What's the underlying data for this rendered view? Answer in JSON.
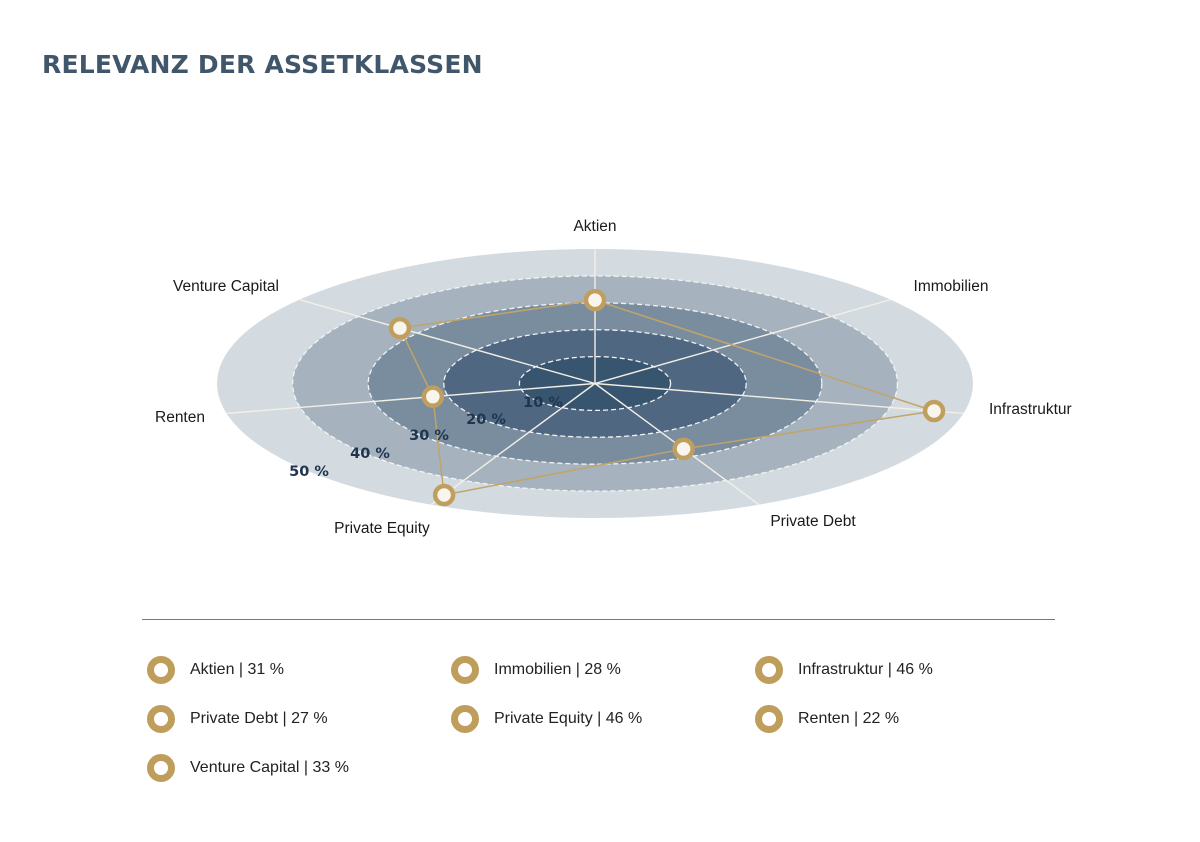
{
  "page": {
    "title": "RELEVANZ DER ASSETKLASSEN"
  },
  "chart_data": {
    "type": "radar",
    "title": "RELEVANZ DER ASSETKLASSEN",
    "axes": [
      "Aktien",
      "Immobilien",
      "Infrastruktur",
      "Private Debt",
      "Private Equity",
      "Renten",
      "Venture Capital"
    ],
    "values": [
      31,
      28,
      46,
      27,
      46,
      22,
      33
    ],
    "plotted": [
      true,
      false,
      true,
      true,
      true,
      true,
      true
    ],
    "unit": "%",
    "rlim": [
      0,
      50
    ],
    "rings": [
      10,
      20,
      30,
      40,
      50
    ],
    "tick_labels": [
      "10 %",
      "20 %",
      "30 %",
      "40 %",
      "50 %"
    ],
    "grid": true,
    "legend_position": "bottom",
    "legend": [
      {
        "label": "Aktien | 31 %"
      },
      {
        "label": "Immobilien | 28 %"
      },
      {
        "label": "Infrastruktur | 46 %"
      },
      {
        "label": "Private Debt | 27 %"
      },
      {
        "label": "Private Equity | 46 %"
      },
      {
        "label": "Renten | 22 %"
      },
      {
        "label": "Venture Capital | 33 %"
      }
    ]
  },
  "colors": {
    "title": "#40566b",
    "ring_fills": [
      "#385570",
      "#4f6780",
      "#7a8d9e",
      "#a6b3be",
      "#d3dbe0"
    ],
    "spokes": "#f3efe6",
    "series_line": "#c2a468",
    "marker_ring": "#c09f5e",
    "marker_fill": "#f8f4ee",
    "tick_label": "#1f3550",
    "divider": "#6e7a86"
  }
}
